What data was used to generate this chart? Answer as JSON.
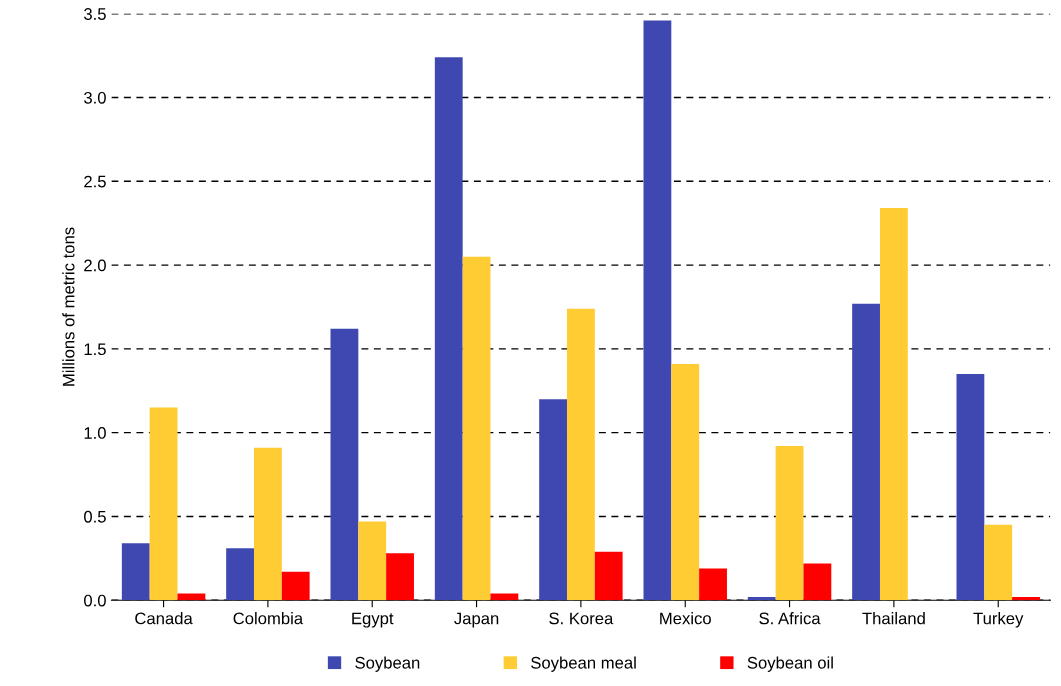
{
  "chart_data": {
    "type": "bar",
    "ylabel": "Millions of metric tons",
    "categories": [
      "Canada",
      "Colombia",
      "Egypt",
      "Japan",
      "S. Korea",
      "Mexico",
      "S. Africa",
      "Thailand",
      "Turkey"
    ],
    "series": [
      {
        "name": "Soybean",
        "color": "#3f48b0",
        "values": [
          0.34,
          0.31,
          1.62,
          3.24,
          1.2,
          3.46,
          0.02,
          1.77,
          1.35
        ]
      },
      {
        "name": "Soybean meal",
        "color": "#ffcc33",
        "values": [
          1.15,
          0.91,
          0.47,
          2.05,
          1.74,
          1.41,
          0.92,
          2.34,
          0.45
        ]
      },
      {
        "name": "Soybean oil",
        "color": "#ff0000",
        "values": [
          0.04,
          0.17,
          0.28,
          0.04,
          0.29,
          0.19,
          0.22,
          null,
          0.02
        ]
      }
    ],
    "ylim": [
      0,
      3.5
    ],
    "yticks": [
      {
        "value": 0,
        "label": "0.0"
      },
      {
        "value": 0.5,
        "label": "0.5"
      },
      {
        "value": 1,
        "label": "1.0"
      },
      {
        "value": 1.5,
        "label": "1.5"
      },
      {
        "value": 2,
        "label": "2.0"
      },
      {
        "value": 2.5,
        "label": "2.5"
      },
      {
        "value": 3,
        "label": "3.0"
      },
      {
        "value": 3.5,
        "label": "3.5"
      }
    ],
    "grid": "y",
    "legend": "bottom"
  }
}
